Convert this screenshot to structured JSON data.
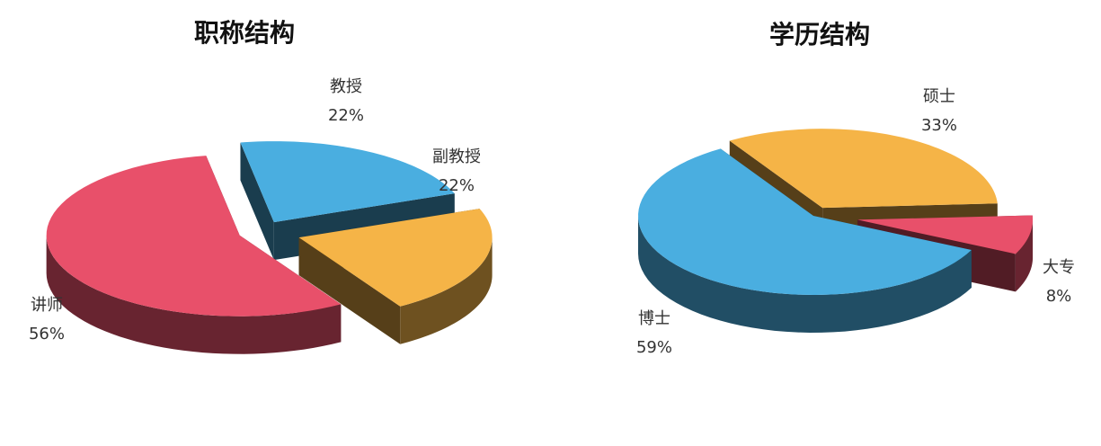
{
  "chart_data": [
    {
      "type": "pie",
      "title": "职称结构",
      "categories": [
        "教授",
        "副教授",
        "讲师"
      ],
      "values": [
        22,
        22,
        56
      ],
      "value_labels": [
        "22%",
        "22%",
        "56%"
      ],
      "colors": [
        "#4aaee0",
        "#f5b447",
        "#e8506a"
      ]
    },
    {
      "type": "pie",
      "title": "学历结构",
      "categories": [
        "硕士",
        "大专",
        "博士"
      ],
      "values": [
        33,
        8,
        59
      ],
      "value_labels": [
        "33%",
        "8%",
        "59%"
      ],
      "colors": [
        "#f5b447",
        "#e8506a",
        "#4aaee0"
      ]
    }
  ]
}
